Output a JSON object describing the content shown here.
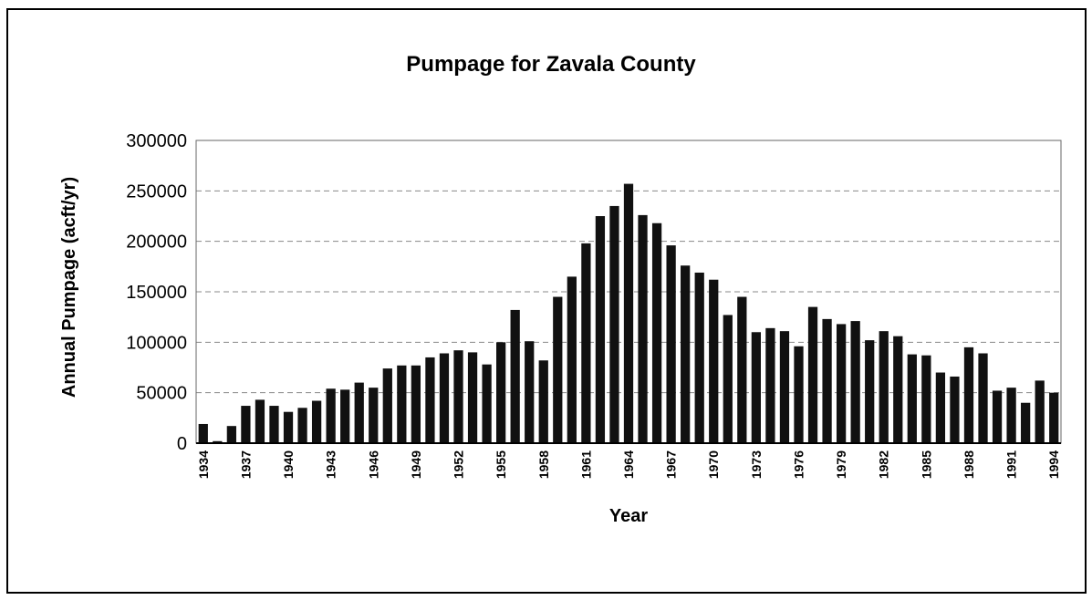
{
  "chart_data": {
    "type": "bar",
    "title": "Pumpage for Zavala County",
    "x_label": "Year",
    "y_label": "Annual Pumpage (acft/yr)",
    "categories": [
      "1934",
      null,
      null,
      "1937",
      null,
      null,
      "1940",
      null,
      null,
      "1943",
      null,
      null,
      "1946",
      null,
      null,
      "1949",
      null,
      null,
      "1952",
      null,
      null,
      "1955",
      null,
      null,
      "1958",
      null,
      null,
      "1961",
      null,
      null,
      "1964",
      null,
      null,
      "1967",
      null,
      null,
      "1970",
      null,
      null,
      "1973",
      null,
      null,
      "1976",
      null,
      null,
      "1979",
      null,
      null,
      "1982",
      null,
      null,
      "1985",
      null,
      null,
      "1988",
      null,
      null,
      "1991",
      null,
      null,
      "1994"
    ],
    "values": [
      19000,
      2000,
      17000,
      37000,
      43000,
      37000,
      31000,
      35000,
      42000,
      54000,
      53000,
      60000,
      55000,
      74000,
      77000,
      77000,
      85000,
      89000,
      92000,
      90000,
      78000,
      100000,
      132000,
      101000,
      82000,
      145000,
      165000,
      198000,
      225000,
      235000,
      257000,
      226000,
      218000,
      196000,
      176000,
      169000,
      162000,
      127000,
      145000,
      110000,
      114000,
      111000,
      96000,
      135000,
      123000,
      118000,
      121000,
      102000,
      111000,
      106000,
      88000,
      87000,
      70000,
      66000,
      95000,
      89000,
      52000,
      55000,
      40000,
      62000,
      50000
    ],
    "color": "#111111",
    "ylim": [
      0,
      300000
    ],
    "yticks": [
      0,
      50000,
      100000,
      150000,
      200000,
      250000,
      300000
    ],
    "grid": true
  }
}
